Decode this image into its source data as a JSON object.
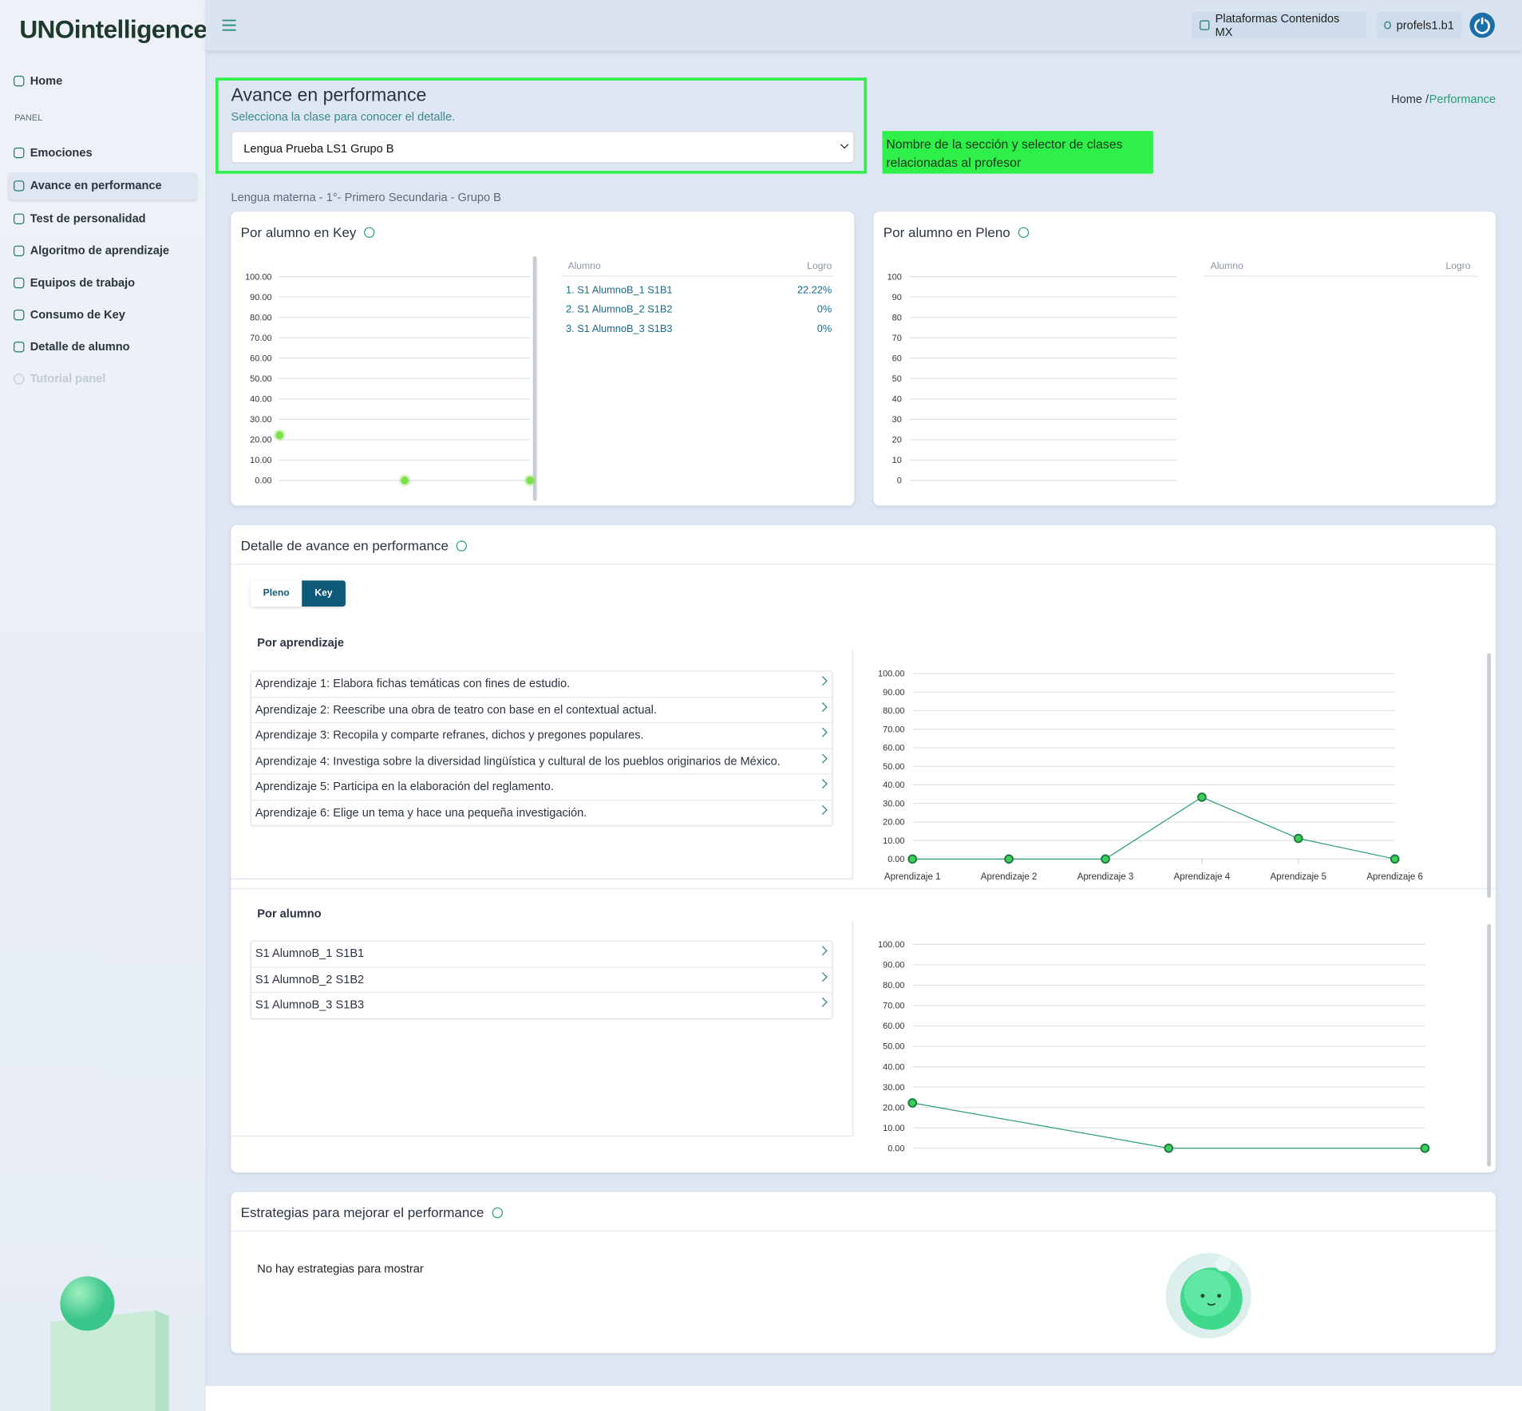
{
  "sidebar": {
    "logo": "UNOintelligence",
    "nav": [
      {
        "label": "Home"
      },
      {
        "label": "PANEL",
        "section": true
      },
      {
        "label": "Emociones"
      },
      {
        "label": "Avance en performance",
        "active": true
      },
      {
        "label": "Test de personalidad"
      },
      {
        "label": "Algoritmo de aprendizaje"
      },
      {
        "label": "Equipos de trabajo"
      },
      {
        "label": "Consumo de Key"
      },
      {
        "label": "Detalle de alumno"
      },
      {
        "label": "Tutorial panel",
        "disabled": true
      }
    ]
  },
  "topbar": {
    "platform": "Plataformas Contenidos MX",
    "user": "profels1.b1"
  },
  "header": {
    "title": "Avance en performance",
    "subtitle": "Selecciona la clase para conocer el detalle.",
    "select": "Lengua Prueba LS1 Grupo B",
    "breadcrumb": {
      "home": "Home",
      "separator": "/",
      "current": "Performance"
    },
    "annotation": "Nombre de la sección y selector de clases relacionadas al profesor"
  },
  "class_info": "Lengua materna - 1°- Primero Secundaria - Grupo B",
  "key_card": {
    "title": "Por alumno en Key",
    "table": {
      "headers": [
        "Alumno",
        "Logro"
      ],
      "rows": [
        [
          "1. S1 AlumnoB_1 S1B1",
          "22.22%"
        ],
        [
          "2. S1 AlumnoB_2 S1B2",
          "0%"
        ],
        [
          "3. S1 AlumnoB_3 S1B3",
          "0%"
        ]
      ]
    }
  },
  "pleno_card": {
    "title": "Por alumno en Pleno",
    "table": {
      "headers": [
        "Alumno",
        "Logro"
      ],
      "rows": []
    }
  },
  "detail_card": {
    "title": "Detalle de avance en performance",
    "tabs": [
      "Pleno",
      "Key"
    ],
    "active_tab": 1,
    "by_learning": {
      "title": "Por aprendizaje",
      "items": [
        "Aprendizaje 1: Elabora fichas temáticas con fines de estudio.",
        "Aprendizaje 2: Reescribe una obra de teatro con base en el contextual actual.",
        "Aprendizaje 3: Recopila y comparte refranes, dichos y pregones populares.",
        "Aprendizaje 4: Investiga sobre la diversidad lingüística y cultural de los pueblos originarios de México.",
        "Aprendizaje 5: Participa en la elaboración del reglamento.",
        "Aprendizaje 6: Elige un tema y hace una pequeña investigación."
      ]
    },
    "by_student": {
      "title": "Por alumno",
      "items": [
        "S1 AlumnoB_1 S1B1",
        "S1 AlumnoB_2 S1B2",
        "S1 AlumnoB_3 S1B3"
      ]
    }
  },
  "strategies_card": {
    "title": "Estrategias para mejorar el performance",
    "empty": "No hay estrategias para mostrar"
  },
  "chart_data": [
    {
      "type": "dot",
      "values": [
        22.22,
        0,
        0
      ],
      "color": "#7ee04a",
      "ylim": [
        0,
        100
      ],
      "yticks": [
        {
          "value": 0,
          "label": "0.00"
        },
        {
          "value": 10,
          "label": "10.00"
        },
        {
          "value": 20,
          "label": "20.00"
        },
        {
          "value": 30,
          "label": "30.00"
        },
        {
          "value": 40,
          "label": "40.00"
        },
        {
          "value": 50,
          "label": "50.00"
        },
        {
          "value": 60,
          "label": "60.00"
        },
        {
          "value": 70,
          "label": "70.00"
        },
        {
          "value": 80,
          "label": "80.00"
        },
        {
          "value": 90,
          "label": "90.00"
        },
        {
          "value": 100,
          "label": "100.00"
        }
      ],
      "grid": true
    },
    {
      "type": "dot",
      "values": [],
      "color": "#7ee04a",
      "ylim": [
        0,
        100
      ],
      "yticks": [
        0,
        10,
        20,
        30,
        40,
        50,
        60,
        70,
        80,
        90,
        100
      ],
      "grid": true
    },
    {
      "type": "line",
      "categories": [
        "Aprendizaje 1",
        "Aprendizaje 2",
        "Aprendizaje 3",
        "Aprendizaje 4",
        "Aprendizaje 5",
        "Aprendizaje 6"
      ],
      "values": [
        0,
        0,
        0,
        33.33,
        11.11,
        0
      ],
      "color": "#2a9d7a",
      "ylim": [
        0,
        100
      ],
      "yticks": [
        {
          "value": 0,
          "label": "0.00"
        },
        {
          "value": 10,
          "label": "10.00"
        },
        {
          "value": 20,
          "label": "20.00"
        },
        {
          "value": 30,
          "label": "30.00"
        },
        {
          "value": 40,
          "label": "40.00"
        },
        {
          "value": 50,
          "label": "50.00"
        },
        {
          "value": 60,
          "label": "60.00"
        },
        {
          "value": 70,
          "label": "70.00"
        },
        {
          "value": 80,
          "label": "80.00"
        },
        {
          "value": 90,
          "label": "90.00"
        },
        {
          "value": 100,
          "label": "100.00"
        }
      ],
      "grid": true
    },
    {
      "type": "line",
      "values": [
        22.22,
        0,
        0
      ],
      "color": "#2a9d7a",
      "ylim": [
        0,
        100
      ],
      "yticks": [
        {
          "value": 0,
          "label": "0.00"
        },
        {
          "value": 10,
          "label": "10.00"
        },
        {
          "value": 20,
          "label": "20.00"
        },
        {
          "value": 30,
          "label": "30.00"
        },
        {
          "value": 40,
          "label": "40.00"
        },
        {
          "value": 50,
          "label": "50.00"
        },
        {
          "value": 60,
          "label": "60.00"
        },
        {
          "value": 70,
          "label": "70.00"
        },
        {
          "value": 80,
          "label": "80.00"
        },
        {
          "value": 90,
          "label": "90.00"
        },
        {
          "value": 100,
          "label": "100.00"
        }
      ],
      "grid": true
    }
  ]
}
